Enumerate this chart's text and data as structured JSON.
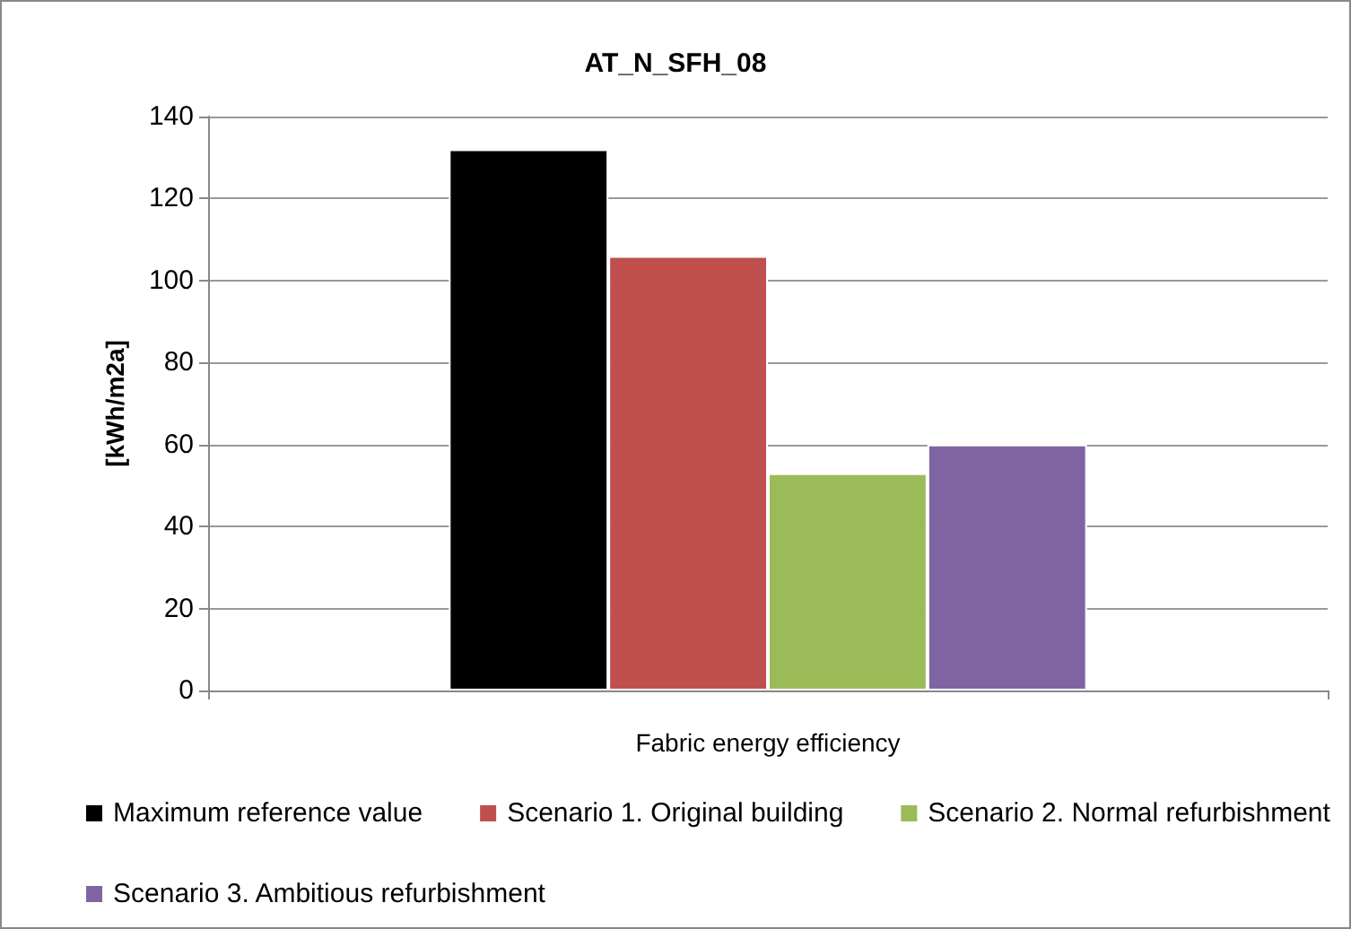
{
  "chart_data": {
    "type": "bar",
    "title": "AT_N_SFH_08",
    "xlabel": "Fabric energy efficiency",
    "ylabel": "[kWh/m2a]",
    "categories": [
      null
    ],
    "series": [
      {
        "name": "Maximum reference value",
        "color": "#000000",
        "values": [
          132
        ]
      },
      {
        "name": "Scenario 1. Original building",
        "color": "#c0504d",
        "values": [
          106
        ]
      },
      {
        "name": "Scenario 2. Normal refurbishment",
        "color": "#9bbb59",
        "values": [
          53
        ]
      },
      {
        "name": "Scenario 3. Ambitious refurbishment",
        "color": "#8064a2",
        "values": [
          60
        ]
      }
    ],
    "ylim": [
      0,
      140
    ],
    "yticks": [
      0,
      20,
      40,
      60,
      80,
      100,
      120,
      140
    ],
    "grid": "y",
    "legend": "bottom"
  }
}
